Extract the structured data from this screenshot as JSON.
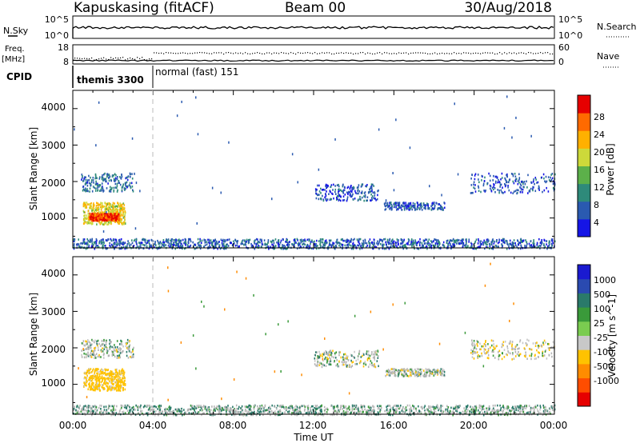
{
  "header": {
    "station": "Kapuskasing (fitACF)",
    "beam": "Beam 00",
    "date": "30/Aug/2018"
  },
  "top_panels": {
    "nsky_label": "N.Sky",
    "nsky_ticks": [
      "10^5",
      "10^0"
    ],
    "nsearch_label": "N.Search",
    "nsearch_ticks": [
      "10^5",
      "10^0"
    ],
    "freq_label_1": "Freq.",
    "freq_label_2": "[MHz]",
    "freq_ticks": [
      "18",
      "8"
    ],
    "nave_label": "Nave",
    "nave_ticks": [
      "60",
      "0"
    ],
    "cpid_label": "CPID",
    "cpid_modes": [
      "themis 3300",
      "normal (fast) 151"
    ]
  },
  "colors": {
    "power_scale": [
      "#1515e6",
      "#2a5ab0",
      "#2e8a7a",
      "#5cb04a",
      "#cdd93a",
      "#ffb000",
      "#ff6a00",
      "#e60000"
    ],
    "velocity_scale": [
      "#e60000",
      "#ff4d00",
      "#ff8c00",
      "#ffc200",
      "#c8c8c8",
      "#7acc50",
      "#3a9a3a",
      "#2a7a6a",
      "#2a4ab0",
      "#1a1ad0"
    ],
    "ground_scatter": "#b4b4b4"
  },
  "chart_data": [
    {
      "type": "heatmap",
      "title": "",
      "xlabel": "",
      "ylabel": "Slant Range [km]",
      "x_unit": "hours UT",
      "xlim": [
        0,
        24
      ],
      "ylim": [
        180,
        4500
      ],
      "y_ticks": [
        "1000",
        "2000",
        "3000",
        "4000"
      ],
      "colorbar": {
        "label": "Power [dB]",
        "ticks": [
          "4",
          "8",
          "12",
          "16",
          "20",
          "24",
          "28"
        ],
        "range": [
          0,
          30
        ]
      },
      "regions": [
        {
          "name": "near",
          "t": [
            0.5,
            2.6
          ],
          "r": [
            850,
            1450
          ],
          "level": 18
        },
        {
          "name": "near-core",
          "t": [
            0.8,
            2.3
          ],
          "r": [
            950,
            1150
          ],
          "level": 26
        },
        {
          "name": "mid",
          "t": [
            0.4,
            3.0
          ],
          "r": [
            1750,
            2250
          ],
          "level": 7
        },
        {
          "name": "tail",
          "t": [
            12.0,
            15.2
          ],
          "r": [
            1500,
            1950
          ],
          "level": 5
        },
        {
          "name": "tail2",
          "t": [
            15.5,
            18.5
          ],
          "r": [
            1250,
            1450
          ],
          "level": 5
        },
        {
          "name": "late",
          "t": [
            19.8,
            24.0
          ],
          "r": [
            1700,
            2250
          ],
          "level": 5
        },
        {
          "name": "near-ground",
          "t": [
            0.0,
            24.0
          ],
          "r": [
            180,
            450
          ],
          "level": 6
        }
      ]
    },
    {
      "type": "heatmap",
      "title": "",
      "xlabel": "Time UT",
      "ylabel": "Slant Range [km]",
      "x_unit": "hours UT",
      "xlim": [
        0,
        24
      ],
      "ylim": [
        180,
        4500
      ],
      "x_ticks": [
        "00:00",
        "04:00",
        "08:00",
        "12:00",
        "16:00",
        "20:00",
        "00:00"
      ],
      "y_ticks": [
        "1000",
        "2000",
        "3000",
        "4000"
      ],
      "colorbar": {
        "label": "Velocity [m s^-1]",
        "ticks": [
          "-1000",
          "-500",
          "-100",
          "-25",
          "25",
          "100",
          "500",
          "1000"
        ],
        "range": [
          -1500,
          1500
        ]
      },
      "regions": [
        {
          "name": "near",
          "t": [
            0.5,
            2.6
          ],
          "r": [
            850,
            1450
          ],
          "level": -200
        },
        {
          "name": "mid",
          "t": [
            0.4,
            3.0
          ],
          "r": [
            1750,
            2250
          ],
          "level": 0
        },
        {
          "name": "tail",
          "t": [
            12.0,
            15.2
          ],
          "r": [
            1500,
            1950
          ],
          "level": 0
        },
        {
          "name": "tail2",
          "t": [
            15.5,
            18.5
          ],
          "r": [
            1250,
            1450
          ],
          "level": 0
        },
        {
          "name": "late",
          "t": [
            19.8,
            24.0
          ],
          "r": [
            1700,
            2250
          ],
          "level": -50
        },
        {
          "name": "near-ground",
          "t": [
            0.0,
            24.0
          ],
          "r": [
            180,
            450
          ],
          "level": 50
        }
      ]
    }
  ]
}
